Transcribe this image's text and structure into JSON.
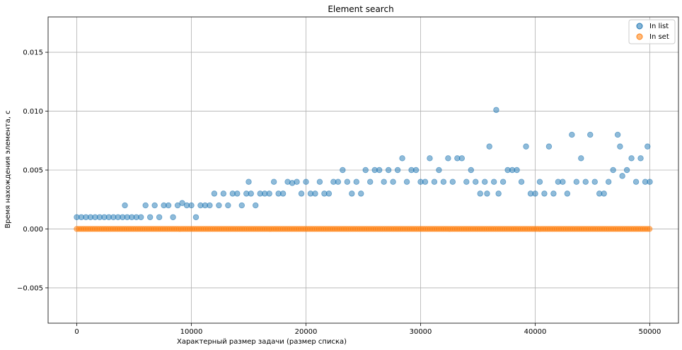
{
  "chart_data": {
    "type": "scatter",
    "title": "Element search",
    "xlabel": "Характерный размер задачи (размер списка)",
    "ylabel": "Время нахождения элемента, с",
    "xlim": [
      -2500,
      52500
    ],
    "ylim": [
      -0.008,
      0.018
    ],
    "xticks": [
      0,
      10000,
      20000,
      30000,
      40000,
      50000
    ],
    "yticks": [
      -0.005,
      0.0,
      0.005,
      0.01,
      0.015
    ],
    "xtick_labels": [
      "0",
      "10000",
      "20000",
      "30000",
      "40000",
      "50000"
    ],
    "ytick_labels": [
      "−0.005",
      "0.000",
      "0.005",
      "0.010",
      "0.015"
    ],
    "grid": true,
    "legend_position": "top-right",
    "series": [
      {
        "name": "In list",
        "color": "#1f77b4",
        "x": [
          0,
          400,
          800,
          1200,
          1600,
          2000,
          2400,
          2800,
          3200,
          3600,
          4000,
          4200,
          4400,
          4800,
          5200,
          5600,
          6000,
          6400,
          6800,
          7200,
          7600,
          8000,
          8400,
          8800,
          9200,
          9600,
          10000,
          10400,
          10800,
          11200,
          11600,
          12000,
          12400,
          12800,
          13200,
          13600,
          14000,
          14400,
          14800,
          15000,
          15200,
          15600,
          16000,
          16400,
          16800,
          17200,
          17600,
          18000,
          18400,
          18800,
          19200,
          19600,
          20000,
          20400,
          20800,
          21200,
          21600,
          22000,
          22400,
          22800,
          23200,
          23600,
          24000,
          24400,
          24800,
          25200,
          25600,
          26000,
          26400,
          26800,
          27200,
          27600,
          28000,
          28400,
          28800,
          29200,
          29600,
          30000,
          30400,
          30800,
          31200,
          31600,
          32000,
          32400,
          32800,
          33200,
          33600,
          34000,
          34400,
          34800,
          35200,
          35600,
          35800,
          36000,
          36400,
          36600,
          36800,
          37200,
          37600,
          38000,
          38400,
          38800,
          39200,
          39600,
          40000,
          40400,
          40800,
          41200,
          41600,
          42000,
          42400,
          42800,
          43200,
          43600,
          44000,
          44400,
          44800,
          45200,
          45600,
          46000,
          46400,
          46800,
          47200,
          47400,
          47600,
          48000,
          48400,
          48800,
          49200,
          49600,
          49800,
          50000
        ],
        "y": [
          0.001,
          0.001,
          0.001,
          0.001,
          0.001,
          0.001,
          0.001,
          0.001,
          0.001,
          0.001,
          0.001,
          0.002,
          0.001,
          0.001,
          0.001,
          0.001,
          0.002,
          0.001,
          0.002,
          0.001,
          0.002,
          0.002,
          0.001,
          0.002,
          0.0022,
          0.002,
          0.002,
          0.001,
          0.002,
          0.002,
          0.002,
          0.003,
          0.002,
          0.003,
          0.002,
          0.003,
          0.003,
          0.002,
          0.003,
          0.004,
          0.003,
          0.002,
          0.003,
          0.003,
          0.003,
          0.004,
          0.003,
          0.003,
          0.004,
          0.0039,
          0.004,
          0.003,
          0.004,
          0.003,
          0.003,
          0.004,
          0.003,
          0.003,
          0.004,
          0.004,
          0.005,
          0.004,
          0.003,
          0.004,
          0.003,
          0.005,
          0.004,
          0.005,
          0.005,
          0.004,
          0.005,
          0.004,
          0.005,
          0.006,
          0.004,
          0.005,
          0.005,
          0.004,
          0.004,
          0.006,
          0.004,
          0.005,
          0.004,
          0.006,
          0.004,
          0.006,
          0.006,
          0.004,
          0.005,
          0.004,
          0.003,
          0.004,
          0.003,
          0.007,
          0.004,
          0.0101,
          0.003,
          0.004,
          0.005,
          0.005,
          0.005,
          0.004,
          0.007,
          0.003,
          0.003,
          0.004,
          0.003,
          0.007,
          0.003,
          0.004,
          0.004,
          0.003,
          0.008,
          0.004,
          0.006,
          0.004,
          0.008,
          0.004,
          0.003,
          0.003,
          0.004,
          0.005,
          0.008,
          0.007,
          0.0045,
          0.005,
          0.006,
          0.004,
          0.006,
          0.004,
          0.007,
          0.004
        ]
      },
      {
        "name": "In set",
        "color": "#ff7f0e",
        "x": [
          0,
          50000
        ],
        "y": [
          0.0,
          0.0
        ]
      }
    ]
  }
}
